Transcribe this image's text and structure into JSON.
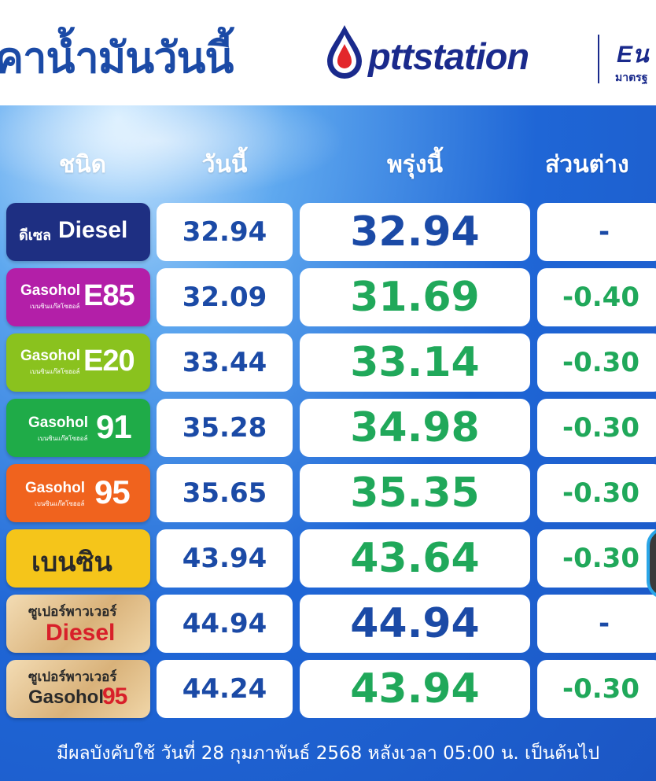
{
  "header": {
    "title": "คาน้ำมันวันนี้",
    "brand": "pttstation",
    "partner_logo": "Eน",
    "partner_sub": "มาตรฐ"
  },
  "table": {
    "columns": [
      "ชนิด",
      "วันนี้",
      "พรุ่งนี้",
      "ส่วนต่าง"
    ],
    "rows": [
      {
        "fuel_word": "Diesel",
        "fuel_prefix": "ดีเซล",
        "badge_color": "#1e2f82",
        "today": "32.94",
        "tomorrow": "32.94",
        "diff": "-",
        "tomorrow_color": "blue"
      },
      {
        "fuel_word": "Gasohol",
        "fuel_num": "E85",
        "fuel_sub": "เบนซินแก๊สโซฮอล์",
        "badge_color": "#b31fa8",
        "today": "32.09",
        "tomorrow": "31.69",
        "diff": "-0.40",
        "tomorrow_color": "green"
      },
      {
        "fuel_word": "Gasohol",
        "fuel_num": "E20",
        "fuel_sub": "เบนซินแก๊สโซฮอล์",
        "badge_color": "#8ac21e",
        "today": "33.44",
        "tomorrow": "33.14",
        "diff": "-0.30",
        "tomorrow_color": "green"
      },
      {
        "fuel_word": "Gasohol",
        "fuel_num": "91",
        "fuel_sub": "เบนซินแก๊สโซฮอล์",
        "badge_color": "#1fab48",
        "today": "35.28",
        "tomorrow": "34.98",
        "diff": "-0.30",
        "tomorrow_color": "green"
      },
      {
        "fuel_word": "Gasohol",
        "fuel_num": "95",
        "fuel_sub": "เบนซินแก๊สโซฮอล์",
        "badge_color": "#f0631e",
        "today": "35.65",
        "tomorrow": "35.35",
        "diff": "-0.30",
        "tomorrow_color": "green"
      },
      {
        "fuel_word": "เบนซิน",
        "badge_color": "#f5c51a",
        "today": "43.94",
        "tomorrow": "43.64",
        "diff": "-0.30",
        "tomorrow_color": "green"
      },
      {
        "fuel_top": "ซูเปอร์พาวเวอร์",
        "fuel_word": "Diesel",
        "badge_color": "#e8c99a",
        "today": "44.94",
        "tomorrow": "44.94",
        "diff": "-",
        "tomorrow_color": "blue"
      },
      {
        "fuel_top": "ซูเปอร์พาวเวอร์",
        "fuel_word": "Gasohol",
        "fuel_num": "95",
        "badge_color": "#e8c99a",
        "today": "44.24",
        "tomorrow": "43.94",
        "diff": "-0.30",
        "tomorrow_color": "green"
      }
    ]
  },
  "footer": {
    "note": "มีผลบังคับใช้ วันที่ 28 กุมภาพันธ์ 2568 หลังเวลา 05:00 น. เป็นต้นไป"
  },
  "colors": {
    "title_blue": "#1b4aa6",
    "price_green": "#20a85a",
    "brand_navy": "#1a2a8c"
  }
}
